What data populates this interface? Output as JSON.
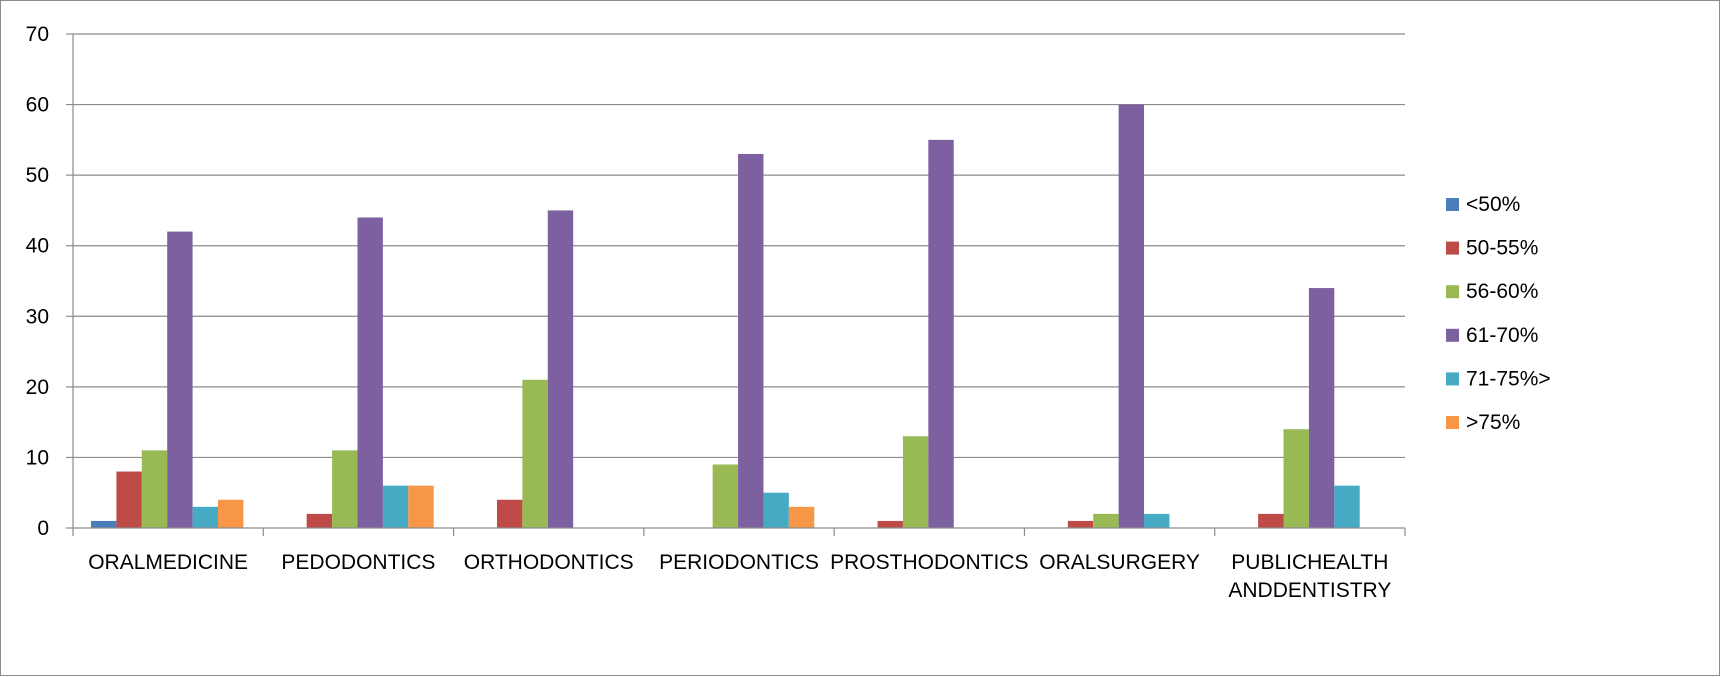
{
  "chart_data": {
    "type": "bar",
    "categories": [
      [
        "ORALMEDICINE"
      ],
      [
        "PEDODONTICS"
      ],
      [
        "ORTHODONTICS"
      ],
      [
        "PERIODONTICS"
      ],
      [
        "PROSTHODONTICS"
      ],
      [
        "ORALSURGERY"
      ],
      [
        "PUBLICHEALTH",
        "ANDDENTISTRY"
      ]
    ],
    "series": [
      {
        "name": "<50%",
        "color": "#4a7ebb",
        "values": [
          1,
          0,
          0,
          0,
          0,
          0,
          0
        ]
      },
      {
        "name": "50-55%",
        "color": "#be4b48",
        "values": [
          8,
          2,
          4,
          0,
          1,
          1,
          2
        ]
      },
      {
        "name": "56-60%",
        "color": "#98b954",
        "values": [
          11,
          11,
          21,
          9,
          13,
          2,
          14
        ]
      },
      {
        "name": "61-70%",
        "color": "#7d60a0",
        "values": [
          42,
          44,
          45,
          53,
          55,
          60,
          34
        ]
      },
      {
        "name": "71-75%>",
        "color": "#46aac5",
        "values": [
          3,
          6,
          0,
          5,
          0,
          2,
          6
        ]
      },
      {
        "name": ">75%",
        "color": "#f79646",
        "values": [
          4,
          6,
          0,
          3,
          0,
          0,
          0
        ]
      }
    ],
    "ylim": [
      0,
      70
    ],
    "yticks": [
      "0",
      "10",
      "20",
      "30",
      "40",
      "50",
      "60",
      "70"
    ],
    "grid": true,
    "legend_position": "right",
    "title": "",
    "xlabel": "",
    "ylabel": ""
  }
}
